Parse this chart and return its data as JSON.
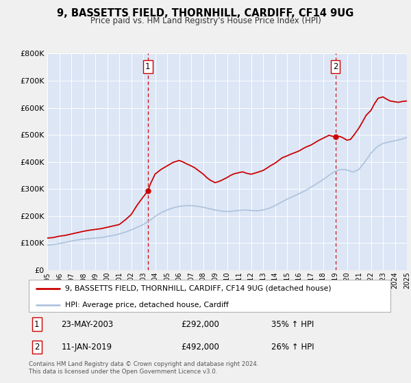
{
  "title": "9, BASSETTS FIELD, THORNHILL, CARDIFF, CF14 9UG",
  "subtitle": "Price paid vs. HM Land Registry's House Price Index (HPI)",
  "fig_bg_color": "#f0f0f0",
  "plot_bg_color": "#dce6f5",
  "grid_color": "#ffffff",
  "xlim": [
    1995,
    2025
  ],
  "ylim": [
    0,
    800000
  ],
  "yticks": [
    0,
    100000,
    200000,
    300000,
    400000,
    500000,
    600000,
    700000,
    800000
  ],
  "ytick_labels": [
    "£0",
    "£100K",
    "£200K",
    "£300K",
    "£400K",
    "£500K",
    "£600K",
    "£700K",
    "£800K"
  ],
  "sale1_x": 2003.39,
  "sale1_y": 292000,
  "sale1_label": "1",
  "sale1_date": "23-MAY-2003",
  "sale1_price": "£292,000",
  "sale1_hpi": "35% ↑ HPI",
  "sale2_x": 2019.03,
  "sale2_y": 492000,
  "sale2_label": "2",
  "sale2_date": "11-JAN-2019",
  "sale2_price": "£492,000",
  "sale2_hpi": "26% ↑ HPI",
  "red_line_color": "#cc0000",
  "blue_line_color": "#b0c4de",
  "dot_color": "#cc0000",
  "vline_color": "#cc0000",
  "legend_label_red": "9, BASSETTS FIELD, THORNHILL, CARDIFF, CF14 9UG (detached house)",
  "legend_label_blue": "HPI: Average price, detached house, Cardiff",
  "footer": "Contains HM Land Registry data © Crown copyright and database right 2024.\nThis data is licensed under the Open Government Licence v3.0.",
  "red_x": [
    1995.0,
    1995.5,
    1996.0,
    1996.5,
    1997.0,
    1997.5,
    1998.0,
    1998.5,
    1999.0,
    1999.5,
    2000.0,
    2000.5,
    2001.0,
    2001.5,
    2002.0,
    2002.5,
    2003.0,
    2003.39,
    2003.6,
    2004.0,
    2004.5,
    2005.0,
    2005.5,
    2006.0,
    2006.3,
    2006.6,
    2007.0,
    2007.3,
    2007.6,
    2008.0,
    2008.3,
    2008.6,
    2009.0,
    2009.3,
    2009.6,
    2010.0,
    2010.3,
    2010.6,
    2011.0,
    2011.3,
    2011.6,
    2012.0,
    2012.3,
    2012.6,
    2013.0,
    2013.3,
    2013.6,
    2014.0,
    2014.3,
    2014.6,
    2015.0,
    2015.3,
    2015.6,
    2016.0,
    2016.3,
    2016.6,
    2017.0,
    2017.3,
    2017.6,
    2018.0,
    2018.5,
    2019.03,
    2019.4,
    2019.7,
    2020.0,
    2020.3,
    2020.6,
    2021.0,
    2021.3,
    2021.6,
    2022.0,
    2022.3,
    2022.6,
    2023.0,
    2023.3,
    2023.6,
    2024.0,
    2024.3,
    2024.6,
    2025.0
  ],
  "red_y": [
    118000,
    120000,
    125000,
    128000,
    133000,
    138000,
    143000,
    147000,
    150000,
    153000,
    158000,
    163000,
    168000,
    185000,
    205000,
    240000,
    270000,
    292000,
    318000,
    355000,
    372000,
    385000,
    398000,
    405000,
    400000,
    393000,
    385000,
    378000,
    368000,
    355000,
    342000,
    332000,
    323000,
    327000,
    333000,
    342000,
    350000,
    356000,
    360000,
    363000,
    358000,
    354000,
    358000,
    362000,
    368000,
    376000,
    385000,
    395000,
    405000,
    415000,
    422000,
    428000,
    433000,
    440000,
    448000,
    455000,
    462000,
    470000,
    478000,
    487000,
    498000,
    492000,
    494000,
    488000,
    480000,
    483000,
    500000,
    525000,
    548000,
    572000,
    590000,
    615000,
    635000,
    640000,
    632000,
    625000,
    622000,
    620000,
    623000,
    625000
  ],
  "blue_x": [
    1995.0,
    1995.5,
    1996.0,
    1996.5,
    1997.0,
    1997.5,
    1998.0,
    1998.5,
    1999.0,
    1999.5,
    2000.0,
    2000.5,
    2001.0,
    2001.5,
    2002.0,
    2002.5,
    2003.0,
    2003.5,
    2004.0,
    2004.5,
    2005.0,
    2005.5,
    2006.0,
    2006.5,
    2007.0,
    2007.5,
    2008.0,
    2008.5,
    2009.0,
    2009.5,
    2010.0,
    2010.5,
    2011.0,
    2011.5,
    2012.0,
    2012.5,
    2013.0,
    2013.5,
    2014.0,
    2014.5,
    2015.0,
    2015.5,
    2016.0,
    2016.5,
    2017.0,
    2017.5,
    2018.0,
    2018.5,
    2019.0,
    2019.5,
    2020.0,
    2020.5,
    2021.0,
    2021.5,
    2022.0,
    2022.5,
    2023.0,
    2023.5,
    2024.0,
    2024.5,
    2025.0
  ],
  "blue_y": [
    92000,
    94000,
    98000,
    102000,
    107000,
    111000,
    114000,
    116000,
    118000,
    120000,
    124000,
    128000,
    133000,
    140000,
    148000,
    158000,
    168000,
    182000,
    198000,
    212000,
    222000,
    230000,
    235000,
    238000,
    238000,
    236000,
    232000,
    227000,
    222000,
    218000,
    216000,
    218000,
    220000,
    222000,
    220000,
    219000,
    222000,
    228000,
    238000,
    250000,
    262000,
    272000,
    282000,
    293000,
    306000,
    320000,
    334000,
    350000,
    365000,
    372000,
    370000,
    362000,
    372000,
    400000,
    432000,
    455000,
    468000,
    473000,
    478000,
    483000,
    490000
  ]
}
